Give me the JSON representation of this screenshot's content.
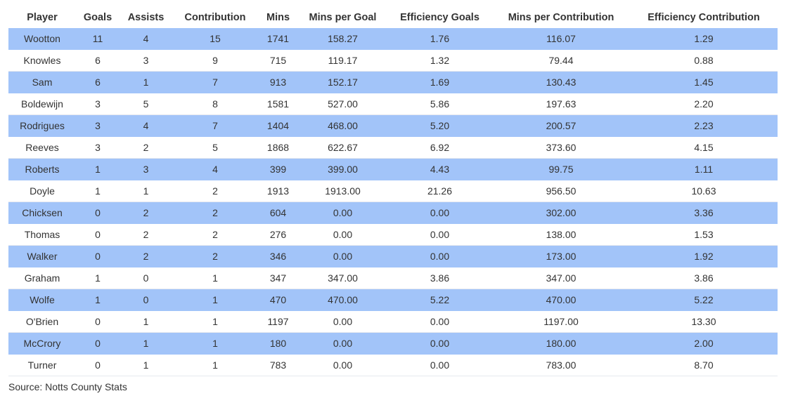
{
  "colors": {
    "row_highlight": "#a2c4f9",
    "row_plain": "#ffffff",
    "text": "#333333"
  },
  "chart_data": {
    "type": "table",
    "columns": [
      "Player",
      "Goals",
      "Assists",
      "Contribution",
      "Mins",
      "Mins per Goal",
      "Efficiency Goals",
      "Mins per Contribution",
      "Efficiency Contribution"
    ],
    "rows": [
      [
        "Wootton",
        "11",
        "4",
        "15",
        "1741",
        "158.27",
        "1.76",
        "116.07",
        "1.29"
      ],
      [
        "Knowles",
        "6",
        "3",
        "9",
        "715",
        "119.17",
        "1.32",
        "79.44",
        "0.88"
      ],
      [
        "Sam",
        "6",
        "1",
        "7",
        "913",
        "152.17",
        "1.69",
        "130.43",
        "1.45"
      ],
      [
        "Boldewijn",
        "3",
        "5",
        "8",
        "1581",
        "527.00",
        "5.86",
        "197.63",
        "2.20"
      ],
      [
        "Rodrigues",
        "3",
        "4",
        "7",
        "1404",
        "468.00",
        "5.20",
        "200.57",
        "2.23"
      ],
      [
        "Reeves",
        "3",
        "2",
        "5",
        "1868",
        "622.67",
        "6.92",
        "373.60",
        "4.15"
      ],
      [
        "Roberts",
        "1",
        "3",
        "4",
        "399",
        "399.00",
        "4.43",
        "99.75",
        "1.11"
      ],
      [
        "Doyle",
        "1",
        "1",
        "2",
        "1913",
        "1913.00",
        "21.26",
        "956.50",
        "10.63"
      ],
      [
        "Chicksen",
        "0",
        "2",
        "2",
        "604",
        "0.00",
        "0.00",
        "302.00",
        "3.36"
      ],
      [
        "Thomas",
        "0",
        "2",
        "2",
        "276",
        "0.00",
        "0.00",
        "138.00",
        "1.53"
      ],
      [
        "Walker",
        "0",
        "2",
        "2",
        "346",
        "0.00",
        "0.00",
        "173.00",
        "1.92"
      ],
      [
        "Graham",
        "1",
        "0",
        "1",
        "347",
        "347.00",
        "3.86",
        "347.00",
        "3.86"
      ],
      [
        "Wolfe",
        "1",
        "0",
        "1",
        "470",
        "470.00",
        "5.22",
        "470.00",
        "5.22"
      ],
      [
        "O'Brien",
        "0",
        "1",
        "1",
        "1197",
        "0.00",
        "0.00",
        "1197.00",
        "13.30"
      ],
      [
        "McCrory",
        "0",
        "1",
        "1",
        "180",
        "0.00",
        "0.00",
        "180.00",
        "2.00"
      ],
      [
        "Turner",
        "0",
        "1",
        "1",
        "783",
        "0.00",
        "0.00",
        "783.00",
        "8.70"
      ]
    ],
    "source": "Source: Notts County Stats"
  }
}
